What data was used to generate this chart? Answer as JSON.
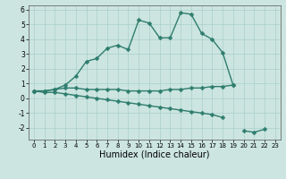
{
  "xlabel": "Humidex (Indice chaleur)",
  "x_values": [
    0,
    1,
    2,
    3,
    4,
    5,
    6,
    7,
    8,
    9,
    10,
    11,
    12,
    13,
    14,
    15,
    16,
    17,
    18,
    19,
    20,
    21,
    22,
    23
  ],
  "line1_y": [
    0.5,
    0.5,
    0.6,
    0.9,
    1.5,
    2.5,
    2.7,
    3.4,
    3.6,
    3.3,
    5.3,
    5.1,
    4.1,
    4.1,
    5.8,
    5.7,
    4.4,
    4.0,
    3.1,
    0.9,
    null,
    null,
    null,
    null
  ],
  "line2_y": [
    0.5,
    0.5,
    0.6,
    0.7,
    0.7,
    0.6,
    0.6,
    0.6,
    0.6,
    0.5,
    0.5,
    0.5,
    0.5,
    0.6,
    0.6,
    0.7,
    0.7,
    0.8,
    0.8,
    0.9,
    null,
    null,
    null,
    null
  ],
  "line3_y": [
    0.5,
    0.4,
    0.4,
    0.3,
    0.2,
    0.1,
    0.0,
    -0.1,
    -0.2,
    -0.3,
    -0.4,
    -0.5,
    -0.6,
    -0.7,
    -0.8,
    -0.9,
    -1.0,
    -1.1,
    -1.3,
    null,
    -2.2,
    -2.3,
    -2.1,
    null
  ],
  "ylim": [
    -2.8,
    6.3
  ],
  "xlim": [
    -0.5,
    23.5
  ],
  "yticks": [
    -2,
    -1,
    0,
    1,
    2,
    3,
    4,
    5,
    6
  ],
  "xticks": [
    0,
    1,
    2,
    3,
    4,
    5,
    6,
    7,
    8,
    9,
    10,
    11,
    12,
    13,
    14,
    15,
    16,
    17,
    18,
    19,
    20,
    21,
    22,
    23
  ],
  "line_color": "#2e7d6e",
  "bg_color": "#cce5e0",
  "grid_color": "#aacfca",
  "markersize": 2.5,
  "linewidth": 1.0
}
